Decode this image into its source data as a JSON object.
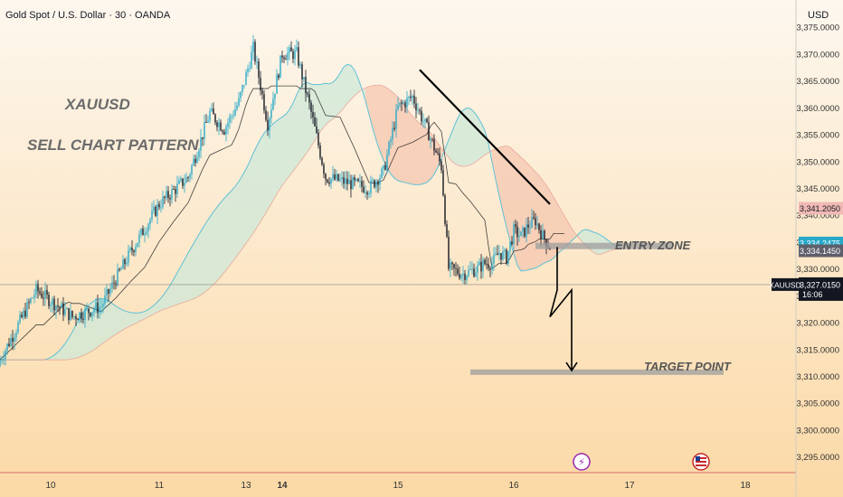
{
  "header": {
    "symbol_line": "Gold Spot / U.S. Dollar · 30 · OANDA",
    "currency": "USD"
  },
  "annotations": {
    "title": "XAUUSD",
    "subtitle": "SELL CHART PATTERN",
    "entry_zone": "ENTRY ZONE",
    "target_point": "TARGET POINT"
  },
  "colors": {
    "background_top": "#fdf7ee",
    "background_bottom": "#fbd9a6",
    "bull": "#26a9c9",
    "bear": "#131722",
    "cloud_bull": "#cfe8d8",
    "cloud_bear": "#f6c7b0",
    "cloud_line": "#5fc0d6",
    "kijun": "#222222",
    "zone": "#9e9e9e",
    "price_label_red": "#f0b9b4",
    "price_label_teal": "#26a9c9",
    "price_label_gray": "#5d606b"
  },
  "price_labels": [
    {
      "text": "3,341.2050",
      "kind": "red"
    },
    {
      "text": "3,334.2475",
      "kind": "teal"
    },
    {
      "text": "3,334.1450",
      "kind": "gray"
    },
    {
      "text": "3,327.0150",
      "kind": "current",
      "extra": "16:06",
      "tag": "XAUUSD"
    }
  ],
  "chart_data": {
    "type": "candlestick",
    "symbol": "XAUUSD",
    "interval": "30",
    "ylim": [
      3292,
      3380
    ],
    "y_ticks": [
      3295,
      3300,
      3305,
      3310,
      3315,
      3320,
      3325,
      3330,
      3335,
      3340,
      3345,
      3350,
      3355,
      3360,
      3365,
      3370,
      3375
    ],
    "y_tick_labels": [
      "3,295.0000",
      "3,300.0000",
      "3,305.0000",
      "3,310.0000",
      "3,315.0000",
      "3,320.0000",
      "3,325.0000",
      "3,330.0000",
      "3,335.0000",
      "3,340.0000",
      "3,345.0000",
      "3,350.0000",
      "3,355.0000",
      "3,360.0000",
      "3,365.0000",
      "3,370.0000",
      "3,375.0000"
    ],
    "x_labels": [
      {
        "label": "10",
        "index": 7,
        "bold": false
      },
      {
        "label": "11",
        "index": 22,
        "bold": false
      },
      {
        "label": "13",
        "index": 34,
        "bold": false
      },
      {
        "label": "14",
        "index": 39,
        "bold": true
      },
      {
        "label": "15",
        "index": 55,
        "bold": false
      },
      {
        "label": "16",
        "index": 71,
        "bold": false
      },
      {
        "label": "17",
        "index": 87,
        "bold": false
      },
      {
        "label": "18",
        "index": 103,
        "bold": false
      }
    ],
    "x_range": [
      0,
      110
    ],
    "candle_close_path": [
      [
        0,
        3313
      ],
      [
        5,
        3326
      ],
      [
        10,
        3321
      ],
      [
        14,
        3323
      ],
      [
        18,
        3333
      ],
      [
        22,
        3342
      ],
      [
        26,
        3347
      ],
      [
        29,
        3359
      ],
      [
        31,
        3356
      ],
      [
        33,
        3361
      ],
      [
        35,
        3371
      ],
      [
        37,
        3357
      ],
      [
        39,
        3370
      ],
      [
        41,
        3370
      ],
      [
        43,
        3359
      ],
      [
        45,
        3347
      ],
      [
        48,
        3346
      ],
      [
        51,
        3345
      ],
      [
        53,
        3348
      ],
      [
        55,
        3360
      ],
      [
        57,
        3362
      ],
      [
        59,
        3356
      ],
      [
        61,
        3349
      ],
      [
        62,
        3330
      ],
      [
        64,
        3329
      ],
      [
        66,
        3330
      ],
      [
        67,
        3331
      ],
      [
        68,
        3331
      ],
      [
        69,
        3333
      ],
      [
        70,
        3332
      ],
      [
        71,
        3337
      ],
      [
        72,
        3336
      ],
      [
        73,
        3338
      ],
      [
        74,
        3339
      ],
      [
        75,
        3336
      ],
      [
        76,
        3334
      ]
    ],
    "current_price": 3327.015,
    "entry_zone_price": 3334.2,
    "target_price": 3310.7,
    "trendline": [
      [
        58,
        3367
      ],
      [
        76,
        3342
      ]
    ],
    "projection_path": [
      [
        77,
        3334
      ],
      [
        77,
        3326
      ],
      [
        76,
        3321
      ],
      [
        79,
        3326
      ],
      [
        79,
        3311
      ]
    ]
  }
}
